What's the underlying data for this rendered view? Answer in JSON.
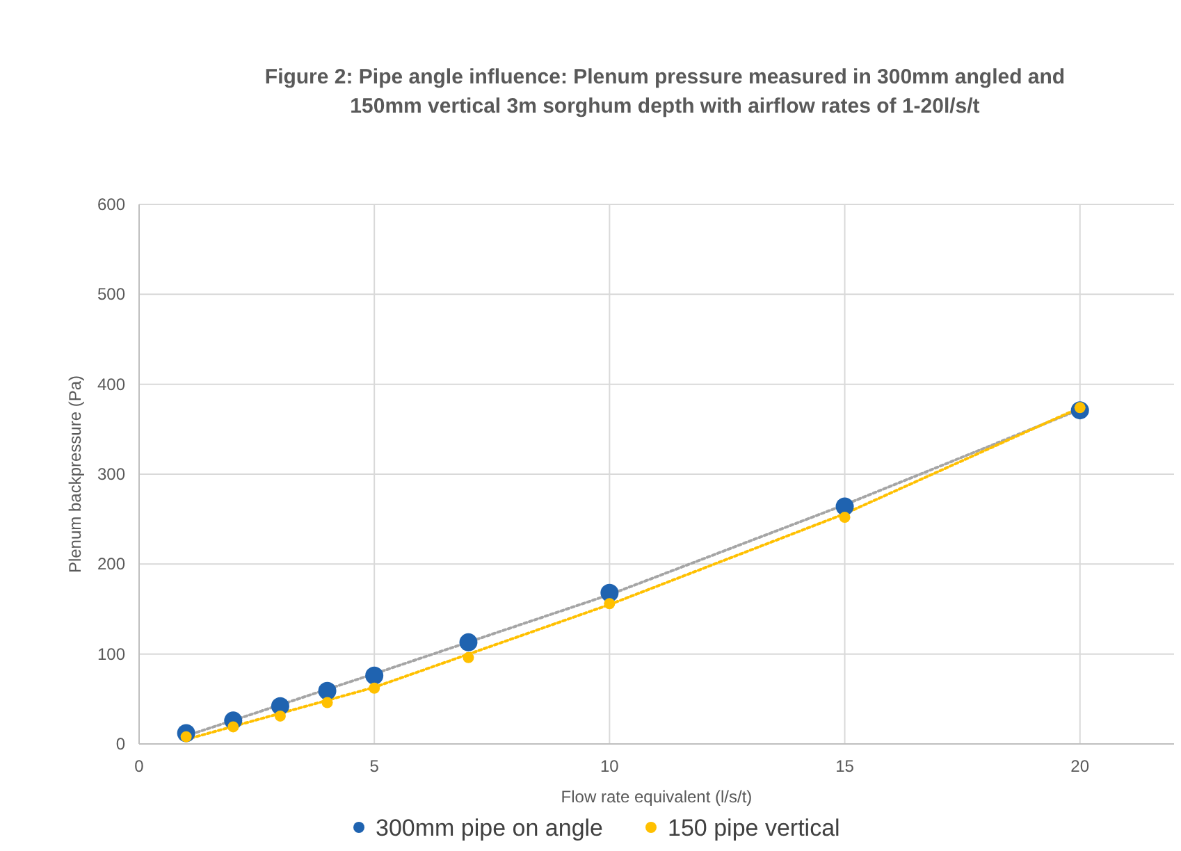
{
  "chart_data": {
    "type": "scatter",
    "title": "Figure 2: Pipe angle influence: Plenum pressure measured in 300mm angled and 150mm vertical 3m sorghum depth with airflow rates of 1-20l/s/t",
    "xlabel": "Flow rate equivalent (l/s/t)",
    "ylabel": "Plenum backpressure (Pa)",
    "x": [
      1,
      2,
      3,
      4,
      5,
      7,
      10,
      15,
      20
    ],
    "series": [
      {
        "type": "line",
        "color": "#a5a5a5",
        "x": [
          1,
          5,
          10,
          15,
          20
        ],
        "values": [
          9,
          78,
          166,
          266,
          372
        ],
        "marker": "none",
        "line_style": "dotted"
      },
      {
        "type": "line",
        "color": "#ffc000",
        "x": [
          1,
          5,
          10,
          15,
          20
        ],
        "values": [
          5,
          63,
          155,
          256,
          374
        ],
        "marker": "none",
        "line_style": "dotted"
      },
      {
        "name": "300mm pipe on angle",
        "color": "#1f63b0",
        "values": [
          12,
          26,
          42,
          59,
          76,
          113,
          168,
          264,
          371
        ]
      },
      {
        "name": "150 pipe vertical",
        "color": "#ffc000",
        "values": [
          8,
          19,
          31,
          46,
          62,
          96,
          156,
          252,
          374
        ]
      }
    ],
    "xlim": [
      0,
      22
    ],
    "xticks": [
      0,
      5,
      10,
      15,
      20
    ],
    "ylim": [
      0,
      600
    ],
    "yticks": [
      0,
      100,
      200,
      300,
      400,
      500,
      600
    ],
    "grid": true,
    "legend": "bottom",
    "marker": "circle"
  }
}
